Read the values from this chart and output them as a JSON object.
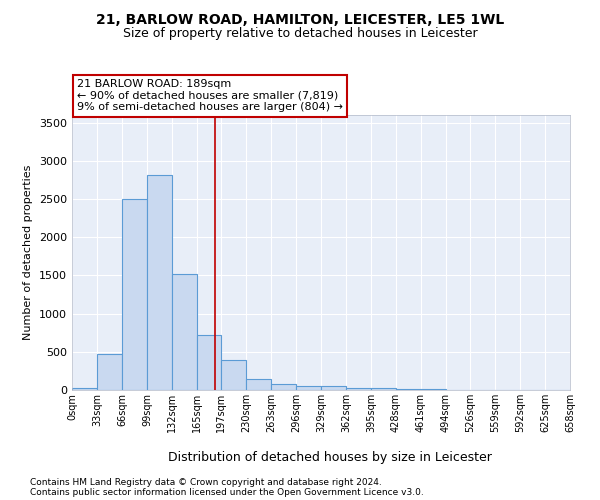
{
  "title": "21, BARLOW ROAD, HAMILTON, LEICESTER, LE5 1WL",
  "subtitle": "Size of property relative to detached houses in Leicester",
  "xlabel": "Distribution of detached houses by size in Leicester",
  "ylabel": "Number of detached properties",
  "bin_edges": [
    0,
    33,
    66,
    99,
    132,
    165,
    197,
    230,
    263,
    296,
    329,
    362,
    395,
    428,
    461,
    494,
    526,
    559,
    592,
    625,
    658
  ],
  "bin_labels": [
    "0sqm",
    "33sqm",
    "66sqm",
    "99sqm",
    "132sqm",
    "165sqm",
    "197sqm",
    "230sqm",
    "263sqm",
    "296sqm",
    "329sqm",
    "362sqm",
    "395sqm",
    "428sqm",
    "461sqm",
    "494sqm",
    "526sqm",
    "559sqm",
    "592sqm",
    "625sqm",
    "658sqm"
  ],
  "bar_heights": [
    25,
    470,
    2500,
    2820,
    1520,
    720,
    390,
    150,
    85,
    55,
    50,
    30,
    20,
    15,
    10,
    5,
    0,
    0,
    0,
    0
  ],
  "bar_color": "#c9d9f0",
  "bar_edgecolor": "#5b9bd5",
  "bar_linewidth": 0.8,
  "vline_x": 189,
  "vline_color": "#c00000",
  "vline_lw": 1.2,
  "annotation_text": "21 BARLOW ROAD: 189sqm\n← 90% of detached houses are smaller (7,819)\n9% of semi-detached houses are larger (804) →",
  "annotation_box_edgecolor": "#c00000",
  "annotation_box_facecolor": "white",
  "ylim": [
    0,
    3600
  ],
  "yticks": [
    0,
    500,
    1000,
    1500,
    2000,
    2500,
    3000,
    3500
  ],
  "bg_color": "#e8eef8",
  "grid_color": "white",
  "footer1": "Contains HM Land Registry data © Crown copyright and database right 2024.",
  "footer2": "Contains public sector information licensed under the Open Government Licence v3.0.",
  "title_fontsize": 10,
  "subtitle_fontsize": 9,
  "ylabel_fontsize": 8,
  "xlabel_fontsize": 9,
  "footer_fontsize": 6.5
}
